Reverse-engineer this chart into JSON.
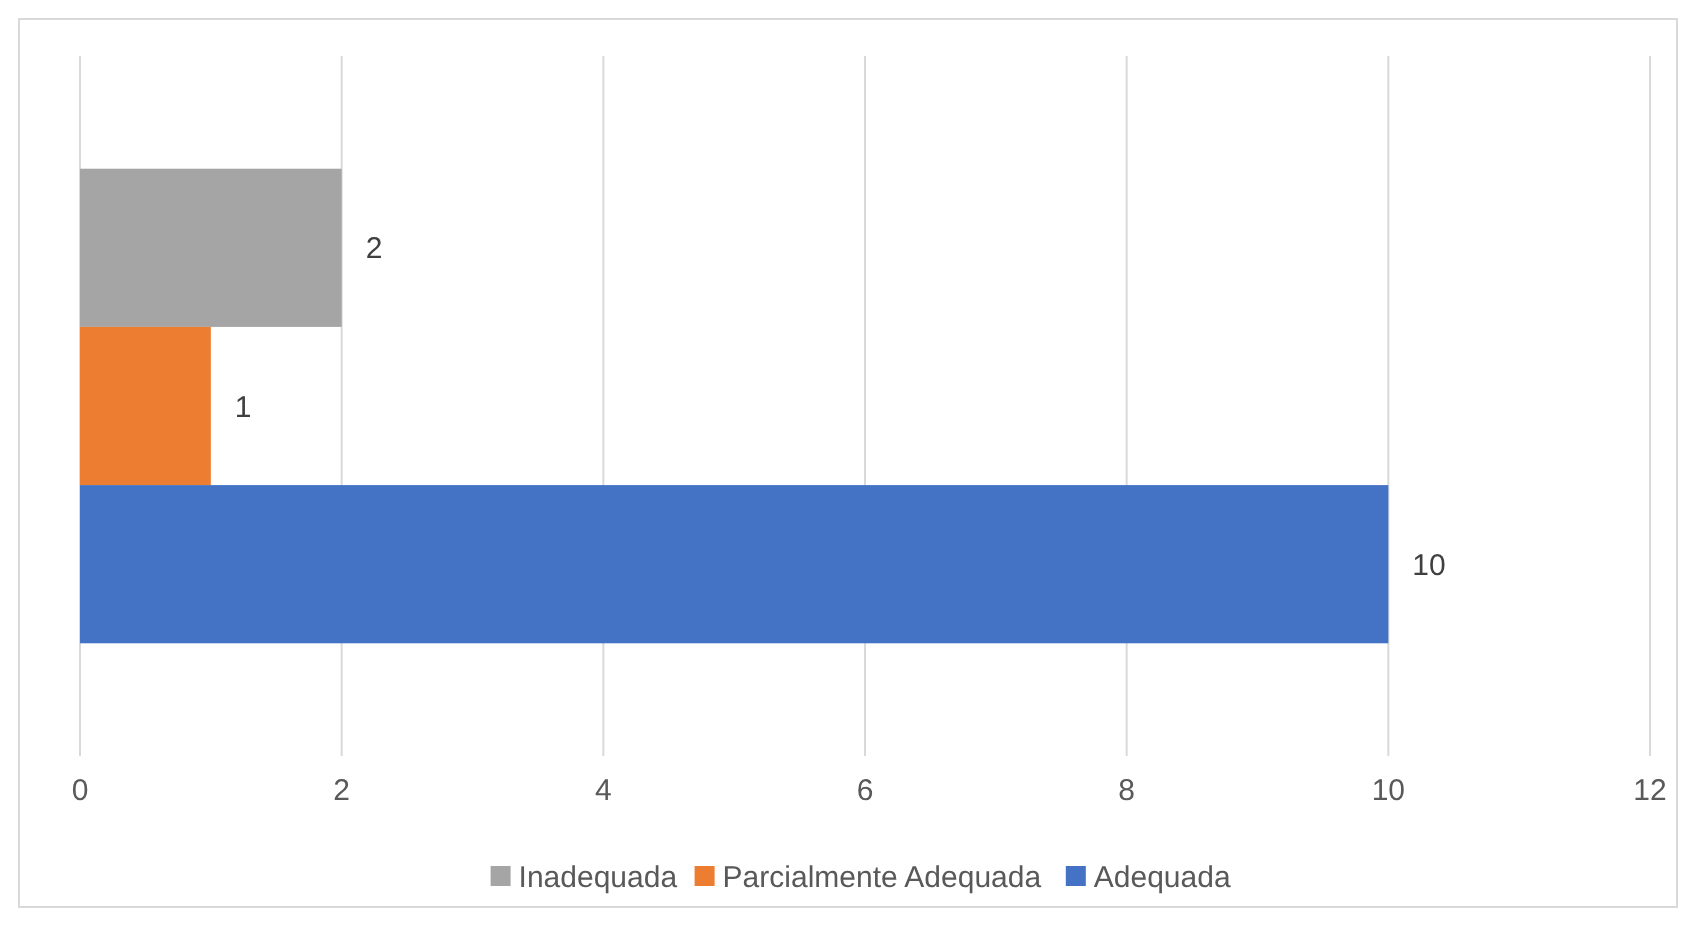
{
  "chart_data": {
    "type": "bar",
    "orientation": "horizontal",
    "categories": [
      null
    ],
    "series": [
      {
        "name": "Inadequada",
        "color": "#a5a5a5",
        "values": [
          2
        ]
      },
      {
        "name": "Parcialmente Adequada",
        "color": "#ed7d31",
        "values": [
          1
        ]
      },
      {
        "name": "Adequada",
        "color": "#4472c4",
        "values": [
          10
        ]
      }
    ],
    "xlim": [
      0,
      12
    ],
    "xticks": [
      0,
      2,
      4,
      6,
      8,
      10,
      12
    ],
    "grid": "x",
    "legend": "bottom",
    "data_labels": true
  }
}
